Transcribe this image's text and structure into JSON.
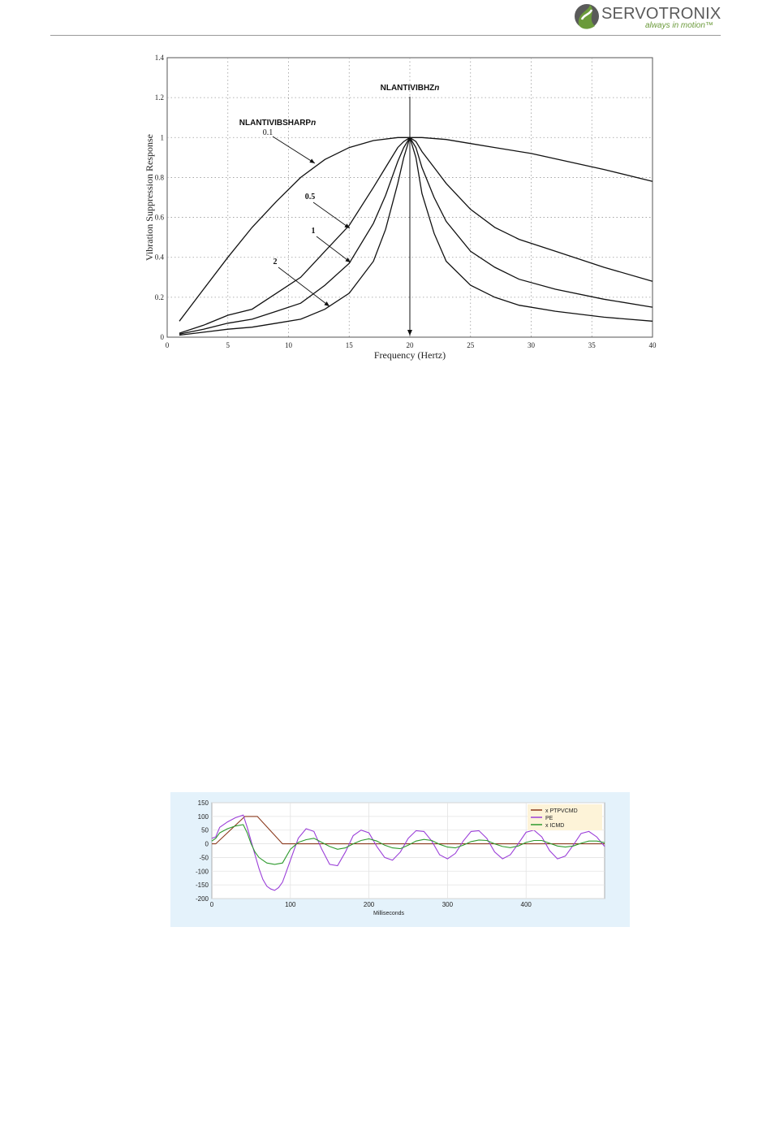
{
  "header": {
    "logo_name": "SERVOTRONIX",
    "logo_tagline": "always in motion™",
    "colors": {
      "logo_green": "#6b9a3b",
      "logo_gray": "#5a5a5a"
    }
  },
  "chart_data": [
    {
      "type": "line",
      "title": "",
      "xlabel": "Frequency (Hertz)",
      "ylabel": "Vibration Suppression Response",
      "xlim": [
        0,
        40
      ],
      "ylim": [
        0,
        1.4
      ],
      "xticks": [
        0,
        5,
        10,
        15,
        20,
        25,
        30,
        35,
        40
      ],
      "yticks": [
        0,
        0.2,
        0.4,
        0.6,
        0.8,
        1,
        1.2,
        1.4
      ],
      "grid": true,
      "annotations": {
        "center_label": "NLANTIVIBHZ",
        "center_label_italic": "n",
        "center_x": 20,
        "sharp_label": "NLANTIVIBSHARP",
        "sharp_label_italic": "n",
        "sharp_label_value": "0.1",
        "labels": [
          "0.5",
          "1",
          "2"
        ]
      },
      "series": [
        {
          "name": "0.1",
          "x": [
            1,
            3,
            5,
            7,
            9,
            11,
            13,
            15,
            17,
            19,
            20,
            21,
            23,
            25,
            27,
            30,
            33,
            36,
            40
          ],
          "y": [
            0.08,
            0.24,
            0.4,
            0.55,
            0.68,
            0.8,
            0.89,
            0.95,
            0.985,
            1.0,
            1.0,
            1.0,
            0.99,
            0.97,
            0.95,
            0.92,
            0.88,
            0.84,
            0.78
          ]
        },
        {
          "name": "0.5",
          "x": [
            1,
            3,
            5,
            7,
            9,
            11,
            13,
            15,
            17,
            18,
            19,
            19.5,
            20,
            20.5,
            21,
            22,
            23,
            25,
            27,
            29,
            32,
            36,
            40
          ],
          "y": [
            0.02,
            0.06,
            0.11,
            0.14,
            0.22,
            0.3,
            0.43,
            0.56,
            0.75,
            0.85,
            0.95,
            0.98,
            1.0,
            0.98,
            0.93,
            0.85,
            0.77,
            0.64,
            0.55,
            0.49,
            0.43,
            0.35,
            0.28
          ]
        },
        {
          "name": "1",
          "x": [
            1,
            3,
            5,
            7,
            9,
            11,
            13,
            15,
            17,
            18,
            19,
            19.5,
            20,
            20.5,
            21,
            22,
            23,
            25,
            27,
            29,
            32,
            36,
            40
          ],
          "y": [
            0.015,
            0.04,
            0.07,
            0.09,
            0.13,
            0.17,
            0.26,
            0.37,
            0.57,
            0.71,
            0.88,
            0.95,
            1.0,
            0.95,
            0.85,
            0.7,
            0.58,
            0.43,
            0.35,
            0.29,
            0.24,
            0.19,
            0.15
          ]
        },
        {
          "name": "2",
          "x": [
            1,
            3,
            5,
            7,
            9,
            11,
            13,
            15,
            17,
            18,
            19,
            19.5,
            20,
            20.5,
            21,
            22,
            23,
            25,
            27,
            29,
            32,
            36,
            40
          ],
          "y": [
            0.01,
            0.025,
            0.04,
            0.05,
            0.07,
            0.09,
            0.14,
            0.22,
            0.38,
            0.54,
            0.77,
            0.9,
            1.0,
            0.9,
            0.72,
            0.52,
            0.38,
            0.26,
            0.2,
            0.16,
            0.13,
            0.1,
            0.08
          ]
        }
      ]
    },
    {
      "type": "line",
      "title": "",
      "xlabel": "Milliseconds",
      "ylabel": "",
      "xlim": [
        0,
        500
      ],
      "ylim": [
        -200,
        150
      ],
      "xticks": [
        0,
        100,
        200,
        300,
        400
      ],
      "yticks": [
        150,
        100,
        50,
        0,
        -50,
        -100,
        -150,
        -200
      ],
      "grid": true,
      "legend": "top-right",
      "series": [
        {
          "name": "x PTPVCMD",
          "color": "#8b3a1e",
          "x": [
            0,
            5,
            42,
            58,
            90,
            500
          ],
          "y": [
            0,
            0,
            100,
            100,
            0,
            0
          ]
        },
        {
          "name": "PE",
          "color": "#9b3fd8",
          "x": [
            0,
            5,
            10,
            20,
            30,
            40,
            45,
            50,
            55,
            60,
            65,
            70,
            75,
            80,
            85,
            90,
            95,
            100,
            110,
            120,
            130,
            140,
            150,
            160,
            170,
            180,
            190,
            200,
            210,
            220,
            230,
            240,
            250,
            260,
            270,
            280,
            290,
            300,
            310,
            320,
            330,
            340,
            350,
            360,
            370,
            380,
            390,
            400,
            410,
            420,
            430,
            440,
            450,
            460,
            470,
            480,
            490,
            500
          ],
          "y": [
            20,
            25,
            60,
            80,
            95,
            105,
            60,
            10,
            -40,
            -90,
            -130,
            -155,
            -165,
            -170,
            -160,
            -140,
            -100,
            -60,
            20,
            55,
            45,
            -20,
            -75,
            -80,
            -30,
            30,
            50,
            40,
            -10,
            -50,
            -60,
            -30,
            20,
            48,
            45,
            10,
            -40,
            -55,
            -35,
            10,
            45,
            48,
            20,
            -30,
            -55,
            -40,
            0,
            42,
            50,
            25,
            -25,
            -55,
            -45,
            -5,
            38,
            45,
            25,
            -10
          ]
        },
        {
          "name": "x ICMD",
          "color": "#2e9a2e",
          "x": [
            0,
            5,
            10,
            20,
            30,
            40,
            45,
            50,
            55,
            60,
            65,
            70,
            80,
            90,
            100,
            110,
            120,
            130,
            140,
            150,
            160,
            170,
            180,
            190,
            200,
            210,
            220,
            230,
            240,
            250,
            260,
            270,
            280,
            290,
            300,
            310,
            320,
            330,
            340,
            350,
            360,
            370,
            380,
            390,
            400,
            410,
            420,
            430,
            440,
            450,
            460,
            470,
            480,
            490,
            500
          ],
          "y": [
            10,
            20,
            40,
            55,
            65,
            70,
            40,
            0,
            -30,
            -50,
            -60,
            -70,
            -75,
            -70,
            -20,
            5,
            15,
            20,
            5,
            -10,
            -20,
            -15,
            0,
            12,
            18,
            10,
            -5,
            -15,
            -18,
            -5,
            10,
            16,
            12,
            -2,
            -12,
            -15,
            -5,
            8,
            14,
            12,
            0,
            -10,
            -14,
            -8,
            5,
            12,
            12,
            2,
            -8,
            -12,
            -8,
            2,
            10,
            10,
            4
          ]
        }
      ]
    }
  ]
}
